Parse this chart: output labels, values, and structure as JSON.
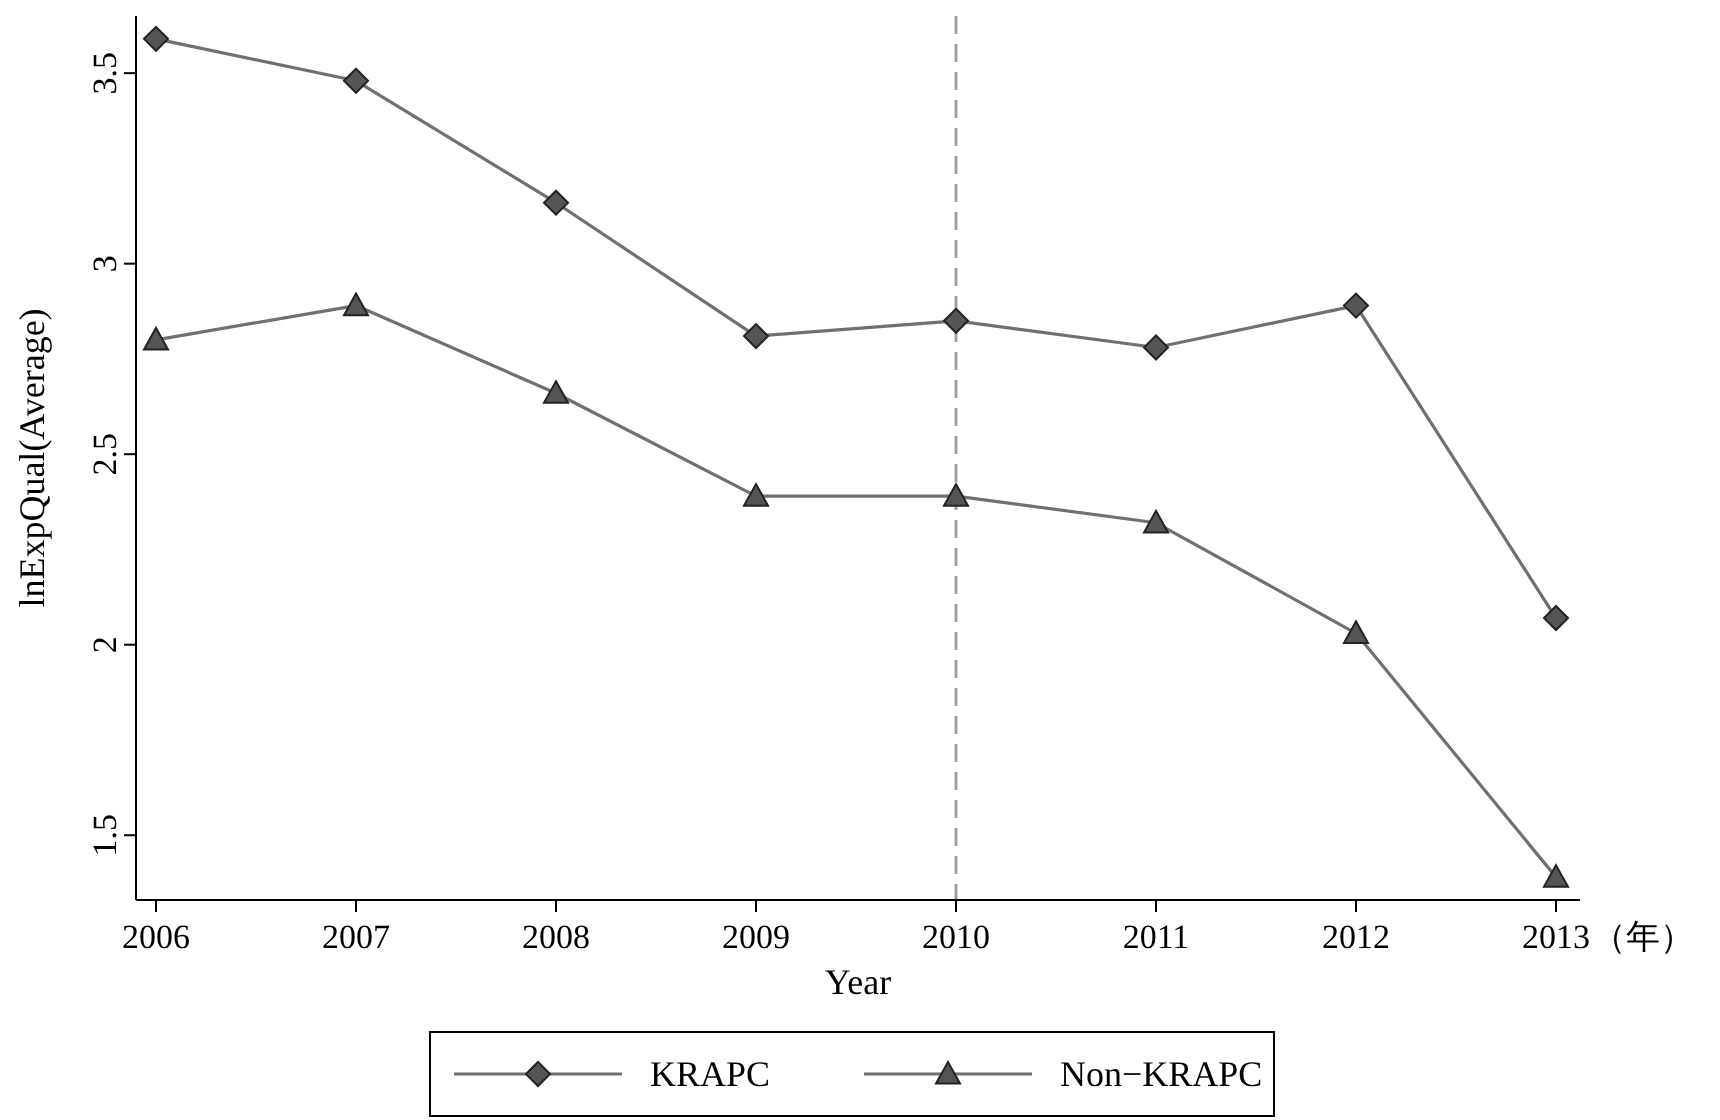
{
  "chart_data": {
    "type": "line",
    "xlabel": "Year",
    "ylabel": "lnExpQual(Average)",
    "x": [
      2006,
      2007,
      2008,
      2009,
      2010,
      2011,
      2012,
      2013
    ],
    "series": [
      {
        "name": "KRAPC",
        "color": "#707070",
        "marker": "diamond",
        "values": [
          3.59,
          3.48,
          3.16,
          2.81,
          2.85,
          2.78,
          2.89,
          2.07
        ]
      },
      {
        "name": "Non−KRAPC",
        "color": "#707070",
        "marker": "triangle",
        "values": [
          2.8,
          2.89,
          2.66,
          2.39,
          2.39,
          2.32,
          2.03,
          1.39
        ]
      }
    ],
    "xlim": [
      2005.9,
      2013.12
    ],
    "xticks": [
      2006,
      2007,
      2008,
      2009,
      2010,
      2011,
      2012,
      2013
    ],
    "ylim": [
      1.33,
      3.65
    ],
    "yticks": [
      1.5,
      2,
      2.5,
      3,
      3.5
    ],
    "ref_lines": [
      {
        "axis": "x",
        "value": 2010,
        "color": "#a0a0a0",
        "line_style": "dashed"
      }
    ],
    "annotations": [
      "（年）"
    ],
    "grid": false,
    "legend": "bottom",
    "line_style": "solid"
  }
}
